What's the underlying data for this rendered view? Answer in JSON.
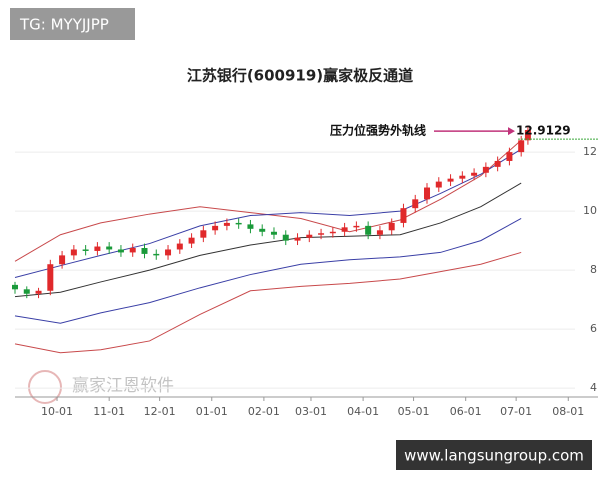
{
  "chart_data": {
    "type": "candlestick",
    "title": "江苏银行(600919)赢家极反通道",
    "x": [
      "09-06",
      "09-13",
      "09-20",
      "09-27",
      "10-04",
      "10-11",
      "10-18",
      "10-25",
      "11-01",
      "11-08",
      "11-15",
      "11-22",
      "11-29",
      "12-06",
      "12-13",
      "12-20",
      "12-27",
      "01-03",
      "01-10",
      "01-17",
      "01-24",
      "01-31",
      "02-07",
      "02-14",
      "02-21",
      "02-28",
      "03-07",
      "03-14",
      "03-21",
      "03-28",
      "04-04",
      "04-11",
      "04-18",
      "04-25",
      "05-02",
      "05-09",
      "05-16",
      "05-23",
      "05-30",
      "06-06",
      "06-13",
      "06-20",
      "06-27",
      "07-04",
      "07-08"
    ],
    "open": [
      7.5,
      7.35,
      7.2,
      7.3,
      8.2,
      8.5,
      8.7,
      8.65,
      8.8,
      8.7,
      8.6,
      8.75,
      8.55,
      8.5,
      8.7,
      8.9,
      9.1,
      9.35,
      9.5,
      9.6,
      9.55,
      9.4,
      9.3,
      9.2,
      9.0,
      9.1,
      9.2,
      9.25,
      9.3,
      9.45,
      9.5,
      9.2,
      9.35,
      9.6,
      10.1,
      10.4,
      10.8,
      11.0,
      11.1,
      11.2,
      11.3,
      11.5,
      11.7,
      12.0,
      12.4
    ],
    "high": [
      7.6,
      7.45,
      7.4,
      8.35,
      8.65,
      8.85,
      8.85,
      8.95,
      8.95,
      8.85,
      8.9,
      8.9,
      8.7,
      8.85,
      9.05,
      9.25,
      9.5,
      9.65,
      9.75,
      9.75,
      9.7,
      9.55,
      9.45,
      9.35,
      9.25,
      9.35,
      9.4,
      9.45,
      9.6,
      9.65,
      9.65,
      9.5,
      9.75,
      10.25,
      10.55,
      10.95,
      11.15,
      11.25,
      11.35,
      11.45,
      11.65,
      11.85,
      12.15,
      12.55,
      12.9
    ],
    "low": [
      7.2,
      7.05,
      7.05,
      7.15,
      8.05,
      8.35,
      8.5,
      8.5,
      8.55,
      8.45,
      8.45,
      8.4,
      8.35,
      8.35,
      8.55,
      8.75,
      8.95,
      9.2,
      9.35,
      9.4,
      9.25,
      9.15,
      9.05,
      8.85,
      8.85,
      8.95,
      9.05,
      9.1,
      9.15,
      9.3,
      9.05,
      9.05,
      9.2,
      9.45,
      9.95,
      10.25,
      10.65,
      10.85,
      10.95,
      11.05,
      11.15,
      11.35,
      11.55,
      11.85,
      12.25
    ],
    "close": [
      7.35,
      7.2,
      7.3,
      8.2,
      8.5,
      8.7,
      8.65,
      8.8,
      8.7,
      8.6,
      8.75,
      8.55,
      8.5,
      8.7,
      8.9,
      9.1,
      9.35,
      9.5,
      9.6,
      9.55,
      9.4,
      9.3,
      9.2,
      9.0,
      9.1,
      9.2,
      9.25,
      9.3,
      9.45,
      9.5,
      9.2,
      9.35,
      9.6,
      10.1,
      10.4,
      10.8,
      11.0,
      11.1,
      11.2,
      11.3,
      11.5,
      11.7,
      12.0,
      12.4,
      12.75
    ],
    "up_color": "#e0292b",
    "down_color": "#1a9a3a",
    "channels": {
      "x": [
        "09-06",
        "10-03",
        "10-27",
        "11-25",
        "12-25",
        "01-24",
        "02-23",
        "03-24",
        "04-23",
        "05-17",
        "06-10",
        "07-04"
      ],
      "series": [
        {
          "color": "#c8494b",
          "values": [
            8.3,
            9.2,
            9.6,
            9.9,
            10.15,
            9.95,
            9.75,
            9.3,
            9.7,
            10.4,
            11.2,
            12.4
          ]
        },
        {
          "color": "#3a3fa6",
          "values": [
            7.75,
            8.15,
            8.5,
            8.9,
            9.5,
            9.85,
            9.95,
            9.85,
            10.0,
            10.6,
            11.25,
            12.1
          ]
        },
        {
          "color": "#333333",
          "values": [
            7.1,
            7.25,
            7.6,
            8.0,
            8.5,
            8.85,
            9.1,
            9.15,
            9.2,
            9.6,
            10.15,
            10.95
          ]
        },
        {
          "color": "#3a3fa6",
          "values": [
            6.45,
            6.2,
            6.55,
            6.9,
            7.4,
            7.85,
            8.2,
            8.35,
            8.45,
            8.6,
            9.0,
            9.75
          ]
        },
        {
          "color": "#c8494b",
          "values": [
            5.5,
            5.2,
            5.3,
            5.6,
            6.5,
            7.3,
            7.45,
            7.55,
            7.7,
            7.95,
            8.2,
            8.6
          ]
        }
      ]
    },
    "annotation": {
      "text": "压力位强势外轨线",
      "value": 12.9129,
      "color": "#c0337a",
      "line_color": "#3aa63a"
    },
    "xlim": [
      "09-06",
      "08-05"
    ],
    "xticks": [
      "10-01",
      "11-01",
      "12-01",
      "01-01",
      "02-01",
      "03-01",
      "04-01",
      "05-01",
      "06-01",
      "07-01",
      "08-01"
    ],
    "ylim": [
      3.7,
      13.8
    ],
    "yticks": [
      4,
      6,
      8,
      10,
      12
    ],
    "grid": true
  },
  "watermarks": {
    "top": "TG: MYYJJPP",
    "logo": "赢家江恩软件",
    "bottom": "www.langsungroup.com"
  }
}
